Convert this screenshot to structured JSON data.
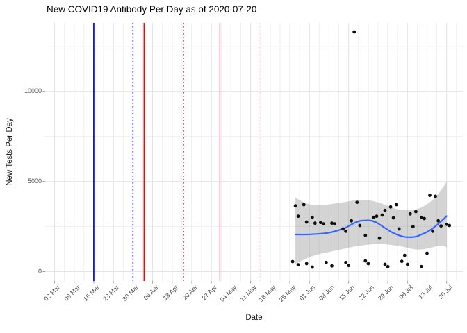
{
  "title": "New COVID19 Antibody Per Day as of 2020-07-20",
  "x_axis_title": "Date",
  "y_axis_title": "New Tests Per Day",
  "colors": {
    "background": "#ffffff",
    "grid_major": "#e4e4e4",
    "grid_minor": "#f0f0f0",
    "tick_label": "#4d4d4d",
    "tick_mark": "#9a9a9a",
    "point": "#101010",
    "smooth_line": "#3366ff",
    "ribbon_fill": "rgba(120,120,120,0.32)",
    "vline_blue": "#1111d8",
    "vline_red": "#de1212",
    "vline_darkred": "#a32424",
    "vline_pink": "#ffb2c2",
    "vline_pink_light": "#ffc9d3"
  },
  "chart_data": {
    "type": "scatter",
    "title": "New COVID19 Antibody Per Day as of 2020-07-20",
    "xlabel": "Date",
    "ylabel": "New Tests Per Day",
    "grid": "major+minor",
    "legend": "none",
    "xlim_dates": [
      "2020-02-27",
      "2020-07-25"
    ],
    "ylim": [
      -520,
      13800
    ],
    "y_ticks": [
      0,
      5000,
      10000
    ],
    "y_minor_ticks": [
      2500,
      7500,
      12500
    ],
    "x_tick_labels": [
      "02 Mar",
      "09 Mar",
      "16 Mar",
      "23 Mar",
      "30 Mar",
      "06 Apr",
      "13 Apr",
      "20 Apr",
      "27 Apr",
      "04 May",
      "11 May",
      "18 May",
      "25 May",
      "01 Jun",
      "08 Jun",
      "15 Jun",
      "22 Jun",
      "29 Jun",
      "06 Jul",
      "13 Jul",
      "20 Jul"
    ],
    "x_tick_dates": [
      "2020-03-02",
      "2020-03-09",
      "2020-03-16",
      "2020-03-23",
      "2020-03-30",
      "2020-04-06",
      "2020-04-13",
      "2020-04-20",
      "2020-04-27",
      "2020-05-04",
      "2020-05-11",
      "2020-05-18",
      "2020-05-25",
      "2020-06-01",
      "2020-06-08",
      "2020-06-15",
      "2020-06-22",
      "2020-06-29",
      "2020-07-06",
      "2020-07-13",
      "2020-07-20"
    ],
    "event_lines": [
      {
        "date": "2020-03-16",
        "style": "solid",
        "color": "#1111d8"
      },
      {
        "date": "2020-03-30",
        "style": "dotted",
        "color": "#1111d8"
      },
      {
        "date": "2020-04-03",
        "style": "solid",
        "color": "#de1212"
      },
      {
        "date": "2020-04-17",
        "style": "dotted",
        "color": "#a32424"
      },
      {
        "date": "2020-04-30",
        "style": "solid",
        "color": "#ffb2c2"
      },
      {
        "date": "2020-05-14",
        "style": "dotted",
        "color": "#ffc9d3"
      }
    ],
    "points": [
      [
        "2020-05-27",
        3650
      ],
      [
        "2020-05-28",
        3072
      ],
      [
        "2020-05-30",
        3715
      ],
      [
        "2020-05-31",
        2753
      ],
      [
        "2020-06-02",
        3011
      ],
      [
        "2020-06-03",
        2687
      ],
      [
        "2020-06-05",
        2726
      ],
      [
        "2020-06-06",
        2649
      ],
      [
        "2020-06-09",
        2687
      ],
      [
        "2020-06-10",
        2649
      ],
      [
        "2020-06-13",
        2368
      ],
      [
        "2020-06-14",
        2241
      ],
      [
        "2020-06-16",
        2818
      ],
      [
        "2020-06-17",
        13300
      ],
      [
        "2020-06-18",
        3842
      ],
      [
        "2020-06-19",
        2560
      ],
      [
        "2020-06-21",
        2010
      ],
      [
        "2020-06-24",
        3011
      ],
      [
        "2020-06-25",
        3072
      ],
      [
        "2020-06-26",
        1856
      ],
      [
        "2020-06-27",
        3138
      ],
      [
        "2020-06-28",
        3396
      ],
      [
        "2020-06-30",
        3588
      ],
      [
        "2020-07-01",
        2984
      ],
      [
        "2020-07-02",
        3715
      ],
      [
        "2020-07-03",
        2368
      ],
      [
        "2020-07-05",
        900
      ],
      [
        "2020-07-07",
        3203
      ],
      [
        "2020-07-08",
        2495
      ],
      [
        "2020-07-09",
        3330
      ],
      [
        "2020-07-11",
        3011
      ],
      [
        "2020-07-12",
        2945
      ],
      [
        "2020-07-13",
        1020
      ],
      [
        "2020-07-14",
        4230
      ],
      [
        "2020-07-15",
        2240
      ],
      [
        "2020-07-16",
        4180
      ],
      [
        "2020-07-17",
        2818
      ],
      [
        "2020-07-18",
        2533
      ],
      [
        "2020-07-20",
        2626
      ],
      [
        "2020-07-21",
        2560
      ],
      [
        "2020-05-26",
        558
      ],
      [
        "2020-05-28",
        377
      ],
      [
        "2020-05-31",
        443
      ],
      [
        "2020-06-02",
        250
      ],
      [
        "2020-06-07",
        508
      ],
      [
        "2020-06-09",
        316
      ],
      [
        "2020-06-14",
        508
      ],
      [
        "2020-06-15",
        339
      ],
      [
        "2020-06-21",
        597
      ],
      [
        "2020-06-22",
        443
      ],
      [
        "2020-06-28",
        404
      ],
      [
        "2020-06-29",
        277
      ],
      [
        "2020-07-04",
        570
      ],
      [
        "2020-07-06",
        404
      ],
      [
        "2020-07-11",
        277
      ]
    ],
    "smooth": {
      "color": "#3366ff",
      "line": [
        [
          "2020-05-27",
          2060
        ],
        [
          "2020-05-31",
          2060
        ],
        [
          "2020-06-04",
          2090
        ],
        [
          "2020-06-08",
          2160
        ],
        [
          "2020-06-11",
          2280
        ],
        [
          "2020-06-14",
          2440
        ],
        [
          "2020-06-17",
          2700
        ],
        [
          "2020-06-19",
          2810
        ],
        [
          "2020-06-21",
          2840
        ],
        [
          "2020-06-23",
          2830
        ],
        [
          "2020-06-25",
          2720
        ],
        [
          "2020-06-27",
          2520
        ],
        [
          "2020-06-29",
          2320
        ],
        [
          "2020-07-01",
          2140
        ],
        [
          "2020-07-03",
          2010
        ],
        [
          "2020-07-05",
          1930
        ],
        [
          "2020-07-07",
          1910
        ],
        [
          "2020-07-09",
          1940
        ],
        [
          "2020-07-11",
          2060
        ],
        [
          "2020-07-13",
          2200
        ],
        [
          "2020-07-15",
          2400
        ],
        [
          "2020-07-17",
          2650
        ],
        [
          "2020-07-19",
          2930
        ],
        [
          "2020-07-20",
          3080
        ]
      ],
      "ribbon": [
        [
          "2020-05-27",
          430,
          4100
        ],
        [
          "2020-05-30",
          660,
          3850
        ],
        [
          "2020-06-02",
          850,
          3700
        ],
        [
          "2020-06-05",
          990,
          3680
        ],
        [
          "2020-06-08",
          1090,
          3730
        ],
        [
          "2020-06-11",
          1190,
          3800
        ],
        [
          "2020-06-14",
          1290,
          3870
        ],
        [
          "2020-06-17",
          1390,
          3950
        ],
        [
          "2020-06-20",
          1460,
          3985
        ],
        [
          "2020-06-23",
          1510,
          3940
        ],
        [
          "2020-06-26",
          1530,
          3820
        ],
        [
          "2020-06-29",
          1500,
          3640
        ],
        [
          "2020-07-02",
          1440,
          3480
        ],
        [
          "2020-07-05",
          1360,
          3420
        ],
        [
          "2020-07-07",
          1290,
          3410
        ],
        [
          "2020-07-09",
          1230,
          3450
        ],
        [
          "2020-07-11",
          1230,
          3560
        ],
        [
          "2020-07-13",
          1280,
          3740
        ],
        [
          "2020-07-15",
          1350,
          3980
        ],
        [
          "2020-07-17",
          1430,
          4310
        ],
        [
          "2020-07-19",
          1440,
          4740
        ],
        [
          "2020-07-20",
          1330,
          4990
        ]
      ]
    }
  }
}
